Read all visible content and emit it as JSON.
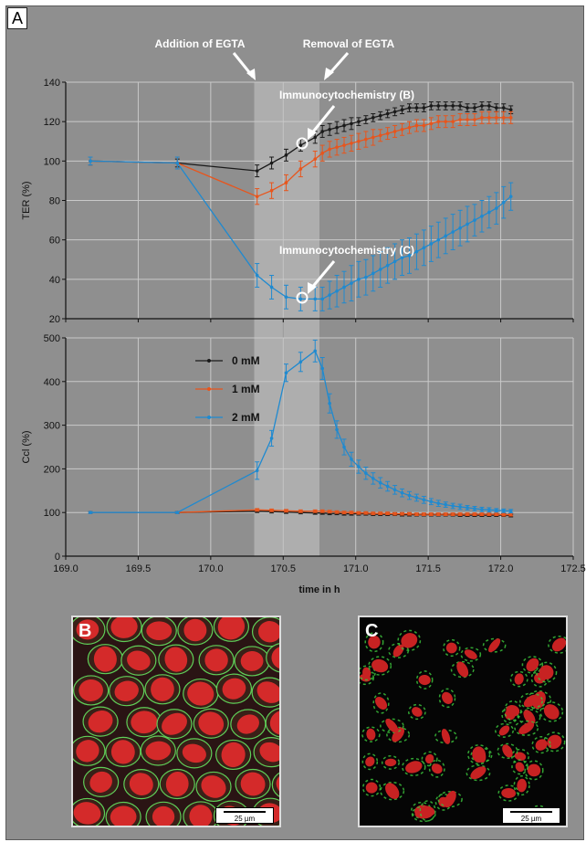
{
  "panel_labels": {
    "a": "A",
    "b": "B",
    "c": "C"
  },
  "annotations": {
    "addition": "Addition of EGTA",
    "removal": "Removal of EGTA",
    "immuno_b": "Immunocytochemistry (B)",
    "immuno_c": "Immunocytochemistry (C)"
  },
  "scale_bar": "25 µm",
  "colors": {
    "0 mM": "#1a1a1a",
    "1 mM": "#e8551c",
    "2 mM": "#1f8ad0",
    "band": "#c8c8c8"
  },
  "chart_data": [
    {
      "type": "line",
      "ylabel": "TER (%)",
      "xlabel": "",
      "xlim": [
        169.0,
        172.5
      ],
      "ylim": [
        20,
        140
      ],
      "yticks": [
        "20",
        "40",
        "60",
        "80",
        "100",
        "120",
        "140"
      ],
      "grid": true,
      "shaded_regions": [
        [
          170.3,
          170.75
        ]
      ],
      "series": [
        {
          "name": "0 mM",
          "x": [
            169.17,
            169.77,
            170.32,
            170.42,
            170.52,
            170.62,
            170.72,
            170.77,
            170.82,
            170.87,
            170.92,
            170.97,
            171.02,
            171.07,
            171.12,
            171.17,
            171.22,
            171.27,
            171.32,
            171.37,
            171.42,
            171.47,
            171.52,
            171.57,
            171.62,
            171.67,
            171.72,
            171.77,
            171.82,
            171.87,
            171.92,
            171.97,
            172.02,
            172.07
          ],
          "y": [
            100,
            99,
            95,
            99,
            103,
            108,
            112,
            115,
            116,
            117,
            118,
            119,
            120,
            121,
            122,
            123,
            124,
            125,
            126,
            127,
            127,
            127,
            128,
            128,
            128,
            128,
            128,
            127,
            127,
            128,
            128,
            127,
            127,
            126
          ],
          "err": [
            2,
            2,
            3,
            3,
            3,
            3,
            3,
            3,
            3,
            3,
            3,
            3,
            2,
            2,
            2,
            2,
            2,
            2,
            2,
            2,
            2,
            2,
            2,
            2,
            2,
            2,
            2,
            2,
            2,
            2,
            2,
            2,
            2,
            2
          ]
        },
        {
          "name": "1 mM",
          "x": [
            169.17,
            169.77,
            170.32,
            170.42,
            170.52,
            170.62,
            170.72,
            170.77,
            170.82,
            170.87,
            170.92,
            170.97,
            171.02,
            171.07,
            171.12,
            171.17,
            171.22,
            171.27,
            171.32,
            171.37,
            171.42,
            171.47,
            171.52,
            171.57,
            171.62,
            171.67,
            171.72,
            171.77,
            171.82,
            171.87,
            171.92,
            171.97,
            172.02,
            172.07
          ],
          "y": [
            100,
            99,
            82,
            85,
            89,
            96,
            101,
            104,
            106,
            107,
            108,
            109,
            110,
            111,
            112,
            113,
            114,
            115,
            116,
            117,
            118,
            118,
            119,
            120,
            120,
            120,
            121,
            121,
            121,
            122,
            122,
            122,
            122,
            122
          ],
          "err": [
            2,
            3,
            4,
            4,
            4,
            4,
            4,
            4,
            4,
            4,
            4,
            4,
            4,
            4,
            4,
            3,
            3,
            3,
            3,
            3,
            3,
            3,
            3,
            3,
            3,
            3,
            3,
            3,
            3,
            3,
            3,
            3,
            3,
            3
          ]
        },
        {
          "name": "2 mM",
          "x": [
            169.17,
            169.77,
            170.32,
            170.42,
            170.52,
            170.62,
            170.72,
            170.77,
            170.82,
            170.87,
            170.92,
            170.97,
            171.02,
            171.07,
            171.12,
            171.17,
            171.22,
            171.27,
            171.32,
            171.37,
            171.42,
            171.47,
            171.52,
            171.57,
            171.62,
            171.67,
            171.72,
            171.77,
            171.82,
            171.87,
            171.92,
            171.97,
            172.02,
            172.07
          ],
          "y": [
            100,
            99,
            42,
            36,
            31,
            30,
            30,
            30,
            32,
            34,
            36,
            38,
            40,
            41,
            43,
            45,
            47,
            49,
            51,
            52,
            54,
            56,
            58,
            60,
            62,
            64,
            66,
            68,
            70,
            72,
            74,
            76,
            79,
            82
          ],
          "err": [
            2,
            3,
            6,
            6,
            6,
            6,
            6,
            6,
            7,
            8,
            8,
            9,
            9,
            9,
            9,
            9,
            9,
            9,
            9,
            9,
            9,
            9,
            9,
            9,
            9,
            9,
            9,
            9,
            8,
            8,
            8,
            8,
            8,
            7
          ]
        }
      ]
    },
    {
      "type": "line",
      "ylabel": "Ccl (%)",
      "xlabel": "time in h",
      "xlim": [
        169.0,
        172.5
      ],
      "ylim": [
        0,
        500
      ],
      "xticks": [
        "169.0",
        "169.5",
        "170.0",
        "170.5",
        "171.0",
        "171.5",
        "172.0",
        "172.5"
      ],
      "yticks": [
        "0",
        "100",
        "200",
        "300",
        "400",
        "500"
      ],
      "grid": true,
      "legend": "top-left",
      "shaded_regions": [
        [
          170.3,
          170.75
        ]
      ],
      "series": [
        {
          "name": "0 mM",
          "x": [
            169.17,
            169.77,
            170.32,
            170.42,
            170.52,
            170.62,
            170.72,
            170.77,
            170.82,
            170.87,
            170.92,
            170.97,
            171.02,
            171.07,
            171.12,
            171.17,
            171.22,
            171.27,
            171.32,
            171.37,
            171.42,
            171.47,
            171.52,
            171.57,
            171.62,
            171.67,
            171.72,
            171.77,
            171.82,
            171.87,
            171.92,
            171.97,
            172.02,
            172.07
          ],
          "y": [
            100,
            100,
            103,
            102,
            101,
            100,
            99,
            99,
            98,
            98,
            97,
            97,
            97,
            97,
            96,
            96,
            96,
            96,
            95,
            95,
            95,
            95,
            95,
            95,
            95,
            95,
            94,
            94,
            94,
            94,
            94,
            94,
            94,
            93
          ],
          "err": [
            2,
            2,
            3,
            3,
            3,
            3,
            3,
            3,
            3,
            3,
            3,
            3,
            3,
            3,
            3,
            3,
            3,
            3,
            3,
            3,
            3,
            3,
            3,
            3,
            3,
            3,
            3,
            3,
            3,
            3,
            3,
            3,
            3,
            3
          ]
        },
        {
          "name": "1 mM",
          "x": [
            169.17,
            169.77,
            170.32,
            170.42,
            170.52,
            170.62,
            170.72,
            170.77,
            170.82,
            170.87,
            170.92,
            170.97,
            171.02,
            171.07,
            171.12,
            171.17,
            171.22,
            171.27,
            171.32,
            171.37,
            171.42,
            171.47,
            171.52,
            171.57,
            171.62,
            171.67,
            171.72,
            171.77,
            171.82,
            171.87,
            171.92,
            171.97,
            172.02,
            172.07
          ],
          "y": [
            100,
            100,
            106,
            105,
            104,
            103,
            103,
            103,
            102,
            101,
            100,
            100,
            99,
            99,
            98,
            98,
            98,
            97,
            97,
            97,
            96,
            96,
            96,
            96,
            96,
            96,
            96,
            96,
            96,
            96,
            96,
            96,
            95,
            95
          ],
          "err": [
            2,
            2,
            3,
            3,
            3,
            3,
            3,
            3,
            3,
            3,
            3,
            3,
            3,
            3,
            3,
            3,
            3,
            3,
            3,
            3,
            3,
            3,
            3,
            3,
            3,
            3,
            3,
            3,
            3,
            3,
            3,
            3,
            3,
            3
          ]
        },
        {
          "name": "2 mM",
          "x": [
            169.17,
            169.77,
            170.32,
            170.42,
            170.52,
            170.62,
            170.72,
            170.77,
            170.82,
            170.87,
            170.92,
            170.97,
            171.02,
            171.07,
            171.12,
            171.17,
            171.22,
            171.27,
            171.32,
            171.37,
            171.42,
            171.47,
            171.52,
            171.57,
            171.62,
            171.67,
            171.72,
            171.77,
            171.82,
            171.87,
            171.92,
            171.97,
            172.02,
            172.07
          ],
          "y": [
            100,
            100,
            196,
            270,
            420,
            445,
            470,
            430,
            350,
            290,
            250,
            222,
            205,
            190,
            178,
            168,
            160,
            152,
            145,
            139,
            134,
            129,
            125,
            121,
            118,
            115,
            113,
            111,
            109,
            107,
            106,
            105,
            104,
            103
          ],
          "err": [
            2,
            2,
            20,
            18,
            20,
            22,
            25,
            25,
            22,
            20,
            18,
            16,
            15,
            14,
            13,
            12,
            11,
            10,
            9,
            9,
            8,
            8,
            7,
            7,
            6,
            6,
            6,
            5,
            5,
            5,
            5,
            4,
            4,
            4
          ]
        }
      ]
    }
  ]
}
